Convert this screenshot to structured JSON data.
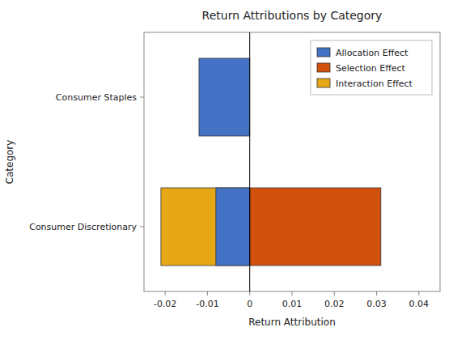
{
  "chart_data": {
    "type": "bar",
    "orientation": "horizontal",
    "stacked": false,
    "title": "Return Attributions by Category",
    "xlabel": "Return Attribution",
    "ylabel": "Category",
    "categories": [
      "Consumer Discretionary",
      "Consumer Staples"
    ],
    "series": [
      {
        "name": "Allocation Effect",
        "color": "#4472C4",
        "values": [
          -0.008,
          -0.012
        ]
      },
      {
        "name": "Selection Effect",
        "color": "#D2510D",
        "values": [
          0.031,
          0.0
        ]
      },
      {
        "name": "Interaction Effect",
        "color": "#E6A817",
        "values": [
          -0.021,
          0.0
        ]
      }
    ],
    "xlim": [
      -0.025,
      0.045
    ],
    "xticks": [
      -0.02,
      -0.01,
      0.0,
      0.01,
      0.02,
      0.03,
      0.04
    ],
    "grid": false,
    "legend": "upper right"
  }
}
